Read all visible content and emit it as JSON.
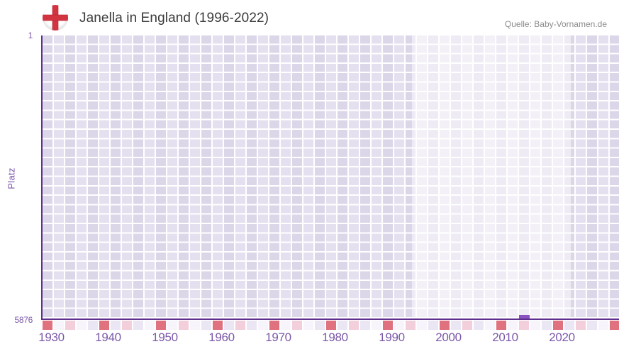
{
  "header": {
    "title": "Janella in England (1996-2022)",
    "source": "Quelle: Baby-Vornamen.de"
  },
  "chart_data": {
    "type": "bar",
    "title": "Janella in England (1996-2022)",
    "source": "Quelle: Baby-Vornamen.de",
    "ylabel": "Platz",
    "y_axis": {
      "top_label": "1",
      "bottom_label": "5876",
      "min": 1,
      "max": 5876,
      "inverted": true
    },
    "x_ticks": [
      1930,
      1940,
      1950,
      1960,
      1970,
      1980,
      1990,
      2000,
      2010,
      2020
    ],
    "x_range": [
      1928,
      2031
    ],
    "grid": true,
    "legend": "none",
    "highlight_period": {
      "start": 1994,
      "end": 2022,
      "label": "data period 1996-2022"
    },
    "points": [
      {
        "year": 2013,
        "rank": 5876
      }
    ],
    "colors": {
      "bar": "#8a50bf",
      "axis": "#5e2f8f",
      "tick_text": "#7a58a8",
      "grid_cell_dark": "#dcd6e9",
      "grid_cell_light": "#e5e0ef",
      "decade_cell": "#e0717f",
      "half_decade_cell": "#f2cfda",
      "strip_cell_dark": "#ebe6f3",
      "strip_cell_light": "#f7f4fb"
    }
  }
}
